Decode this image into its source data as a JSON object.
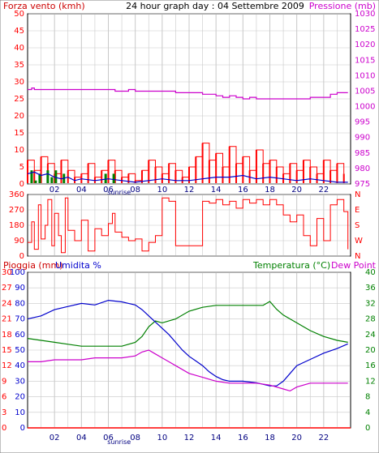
{
  "header": {
    "title": "24 hour graph day : 04 Settembre 2009",
    "left_label": "Forza vento (kmh)",
    "right_label": "Pressione (mb)"
  },
  "colors": {
    "wind": "#ff0000",
    "gust": "#008000",
    "wind_avg": "#0000cc",
    "pressure": "#cc00cc",
    "direction": "#ff0000",
    "rain": "#ff0000",
    "humidity": "#0000cc",
    "temperature": "#008000",
    "dew_point": "#cc00cc",
    "grid": "#c8c8c8",
    "bottom_axis": "#000080",
    "left_axis_top": "#ff0000",
    "left_axis_bottom": "#0000cc",
    "right_axis_top": "#cc00cc",
    "right_axis_bottom": "#008000"
  },
  "chart_data": [
    {
      "type": "line",
      "id": "wind_pressure",
      "ylabel": "Forza vento (kmh)",
      "y2label": "Pressione (mb)",
      "ylim": [
        0,
        50
      ],
      "y2lim": [
        975,
        1030
      ],
      "yticks": [
        0,
        5,
        10,
        15,
        20,
        25,
        30,
        35,
        40,
        45,
        50
      ],
      "y2ticks": [
        975,
        980,
        985,
        990,
        995,
        1000,
        1005,
        1010,
        1015,
        1020,
        1025,
        1030
      ],
      "xlim": [
        0,
        24
      ],
      "xticks": [
        "02",
        "04",
        "06",
        "08",
        "10",
        "12",
        "14",
        "16",
        "18",
        "20",
        "22"
      ],
      "sunrise_label": "sunrise",
      "sunrise_hour": 6.8,
      "series": [
        {
          "key": "pressure",
          "x": [
            0,
            0.3,
            0.5,
            1,
            3,
            6,
            6.5,
            7.5,
            8,
            9,
            10,
            11,
            12,
            13,
            14,
            14.5,
            15,
            15.5,
            16,
            16.5,
            17,
            18,
            19,
            20,
            21,
            22,
            22.5,
            23,
            23.8
          ],
          "values": [
            1005.5,
            1006,
            1005.5,
            1005.5,
            1005.5,
            1005.5,
            1005,
            1005.5,
            1005,
            1005,
            1005,
            1004.5,
            1004.5,
            1004,
            1003.5,
            1003,
            1003.5,
            1003,
            1002.5,
            1003,
            1002.5,
            1002.5,
            1002.5,
            1002.5,
            1003,
            1003,
            1004,
            1004.5,
            1004.5
          ]
        },
        {
          "key": "wind",
          "x": [
            0,
            0.5,
            1,
            1.5,
            2,
            2.5,
            3,
            3.5,
            4,
            4.5,
            5,
            5.5,
            6,
            6.5,
            7,
            7.5,
            8,
            8.5,
            9,
            9.5,
            10,
            10.5,
            11,
            11.5,
            12,
            12.5,
            13,
            13.5,
            14,
            14.5,
            15,
            15.5,
            16,
            16.5,
            17,
            17.5,
            18,
            18.5,
            19,
            19.5,
            20,
            20.5,
            21,
            21.5,
            22,
            22.5,
            23,
            23.5
          ],
          "values": [
            7,
            4,
            8,
            6,
            3,
            7,
            4,
            2,
            3,
            6,
            2,
            4,
            7,
            4,
            2,
            3,
            1,
            4,
            7,
            5,
            3,
            6,
            4,
            2,
            5,
            8,
            12,
            7,
            9,
            5,
            11,
            6,
            8,
            4,
            10,
            6,
            7,
            5,
            3,
            6,
            4,
            7,
            5,
            3,
            7,
            4,
            6,
            3
          ]
        },
        {
          "key": "gust",
          "x": [
            0,
            0.3,
            0.6,
            0.9,
            1.2,
            1.5,
            1.8,
            2.1,
            2.4,
            2.7,
            3.0,
            5.5,
            5.8,
            6.1,
            6.4
          ],
          "values": [
            0,
            4,
            1,
            3,
            0,
            4,
            2,
            4,
            0,
            3,
            0,
            0,
            3,
            0,
            3
          ]
        },
        {
          "key": "wind_avg",
          "x": [
            0,
            0.5,
            1,
            1.5,
            2,
            2.5,
            3,
            3.5,
            4,
            5,
            6,
            7,
            8,
            9,
            10,
            11,
            12,
            13,
            14,
            15,
            16,
            17,
            18,
            19,
            20,
            21,
            22,
            23,
            23.8
          ],
          "values": [
            3,
            3.5,
            2.5,
            3,
            2,
            1.5,
            2,
            1,
            1.5,
            1,
            1.5,
            1,
            0.5,
            1,
            1.5,
            1,
            1,
            1.5,
            2,
            2,
            2.5,
            1.5,
            2,
            1.5,
            1,
            1.5,
            1,
            0.5,
            0.5
          ]
        }
      ]
    },
    {
      "type": "line",
      "id": "wind_direction",
      "ylim": [
        0,
        360
      ],
      "yticks": [
        0,
        90,
        180,
        270,
        360
      ],
      "ytick_labels": [
        "0",
        "90",
        "180",
        "270",
        "360"
      ],
      "y2_labels": [
        "N",
        "W",
        "S",
        "E",
        "N"
      ],
      "xlim": [
        0,
        24
      ],
      "series": [
        {
          "key": "direction",
          "x": [
            0,
            0.3,
            0.5,
            0.8,
            1,
            1.3,
            1.5,
            1.8,
            2,
            2.3,
            2.5,
            2.8,
            3,
            3.5,
            4,
            4.5,
            5,
            5.5,
            6,
            6.3,
            6.5,
            7,
            7.5,
            8,
            8.5,
            9,
            9.5,
            10,
            10.5,
            11,
            11.5,
            12,
            12.5,
            13,
            13.5,
            14,
            14.5,
            15,
            15.5,
            16,
            16.5,
            17,
            17.5,
            18,
            18.5,
            19,
            19.5,
            20,
            20.5,
            21,
            21.5,
            22,
            22.5,
            23,
            23.5,
            23.8
          ],
          "values": [
            80,
            200,
            40,
            300,
            100,
            180,
            330,
            60,
            250,
            120,
            20,
            340,
            150,
            90,
            210,
            30,
            160,
            120,
            190,
            250,
            140,
            110,
            90,
            100,
            30,
            80,
            120,
            340,
            320,
            60,
            60,
            60,
            60,
            320,
            310,
            330,
            300,
            320,
            280,
            330,
            310,
            330,
            300,
            330,
            300,
            240,
            200,
            240,
            120,
            60,
            220,
            90,
            300,
            330,
            260,
            40
          ]
        }
      ]
    },
    {
      "type": "line",
      "id": "temp_humidity",
      "left_label_1": "Pioggia (mm)",
      "left_label_2": "Umidita %",
      "right_label_1": "Temperatura (°C)",
      "right_label_2": "Dew Point",
      "humidity_ticks": [
        0,
        10,
        20,
        30,
        40,
        50,
        60,
        70,
        80,
        90,
        100
      ],
      "rain_ticks": [
        0,
        3,
        6,
        9,
        12,
        15,
        18,
        21,
        24,
        27,
        30
      ],
      "temp_ticks": [
        0,
        4,
        8,
        12,
        16,
        20,
        24,
        28,
        32,
        36,
        40
      ],
      "ylim_humidity": [
        0,
        100
      ],
      "ylim_rain": [
        0,
        30
      ],
      "ylim_temp": [
        0,
        40
      ],
      "xlim": [
        0,
        24
      ],
      "sunrise_label": "sunrise",
      "sunrise_hour": 6.8,
      "series": [
        {
          "key": "humidity",
          "x": [
            0,
            1,
            2,
            3,
            4,
            5,
            6,
            7,
            7.5,
            8,
            8.5,
            9,
            9.5,
            10,
            10.5,
            11,
            11.5,
            12,
            12.5,
            13,
            13.5,
            14,
            14.5,
            15,
            16,
            17,
            18,
            18.5,
            19,
            19.5,
            20,
            21,
            22,
            23,
            23.8
          ],
          "values": [
            70,
            72,
            76,
            78,
            80,
            79,
            82,
            81,
            80,
            79,
            76,
            72,
            68,
            64,
            60,
            55,
            50,
            46,
            43,
            40,
            36,
            33,
            31,
            30,
            30,
            29,
            27,
            27,
            30,
            35,
            40,
            44,
            48,
            51,
            54
          ]
        },
        {
          "key": "temperature",
          "x": [
            0,
            1,
            2,
            3,
            4,
            5,
            6,
            7,
            8,
            8.5,
            9,
            9.5,
            10,
            11,
            12,
            13,
            14,
            15,
            16,
            17,
            17.5,
            18,
            18.5,
            19,
            20,
            21,
            22,
            23,
            23.8
          ],
          "values": [
            23,
            22.5,
            22,
            21.5,
            21,
            21,
            21,
            21,
            22,
            23.5,
            26,
            27.5,
            27,
            28,
            30,
            31,
            31.5,
            31.5,
            31.5,
            31.5,
            31.5,
            32.5,
            30.5,
            29,
            27,
            25,
            23.5,
            22.5,
            22
          ]
        },
        {
          "key": "dew_point",
          "x": [
            0,
            1,
            2,
            3,
            4,
            5,
            6,
            7,
            8,
            8.5,
            9,
            9.5,
            10,
            10.5,
            11,
            12,
            13,
            14,
            15,
            16,
            17,
            18,
            19,
            19.5,
            20,
            21,
            22,
            23,
            23.8
          ],
          "values": [
            17,
            17,
            17.5,
            17.5,
            17.5,
            18,
            18,
            18,
            18.5,
            19.5,
            20,
            19,
            18,
            17,
            16,
            14,
            13,
            12,
            11.5,
            11.5,
            11.5,
            11,
            10,
            9.5,
            10.5,
            11.5,
            11.5,
            11.5,
            11.5
          ]
        },
        {
          "key": "rain",
          "x": [
            0,
            24
          ],
          "values": [
            0,
            0
          ]
        }
      ]
    }
  ]
}
